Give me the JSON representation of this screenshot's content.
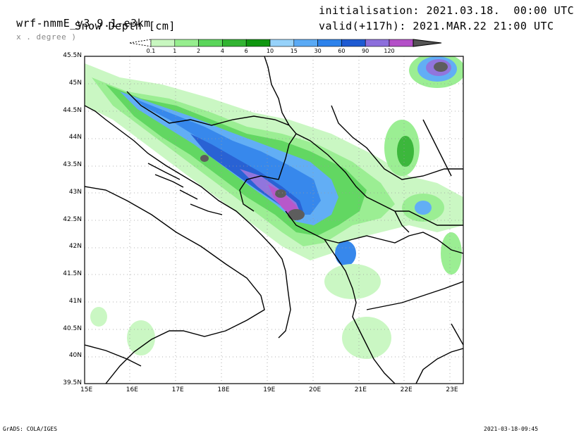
{
  "header": {
    "model": "wrf-nmmE_v3.9.1-e3km",
    "grid_note": "x . degree )",
    "variable": "Snow Depth [cm]",
    "init": "initialisation: 2021.03.18.  00:00 UTC",
    "valid": "valid(+117h): 2021.MAR.22 21:00 UTC"
  },
  "colorbar": {
    "labels": [
      "0.1",
      "1",
      "2",
      "4",
      "6",
      "10",
      "15",
      "30",
      "60",
      "90",
      "120"
    ],
    "colors": [
      "#c8f7c0",
      "#96ee8e",
      "#5ad55a",
      "#32b432",
      "#0f960f",
      "#96d2fa",
      "#5aaaf5",
      "#2d82eb",
      "#1e5ad2",
      "#8c6edc",
      "#b450c8"
    ],
    "extend_color": "#555555"
  },
  "axes": {
    "lat_labels": [
      "45.5N",
      "45N",
      "44.5N",
      "44N",
      "43.5N",
      "43N",
      "42.5N",
      "42N",
      "41.5N",
      "41N",
      "40.5N",
      "40N",
      "39.5N"
    ],
    "lon_labels": [
      "15E",
      "16E",
      "17E",
      "18E",
      "19E",
      "20E",
      "21E",
      "22E",
      "23E"
    ]
  },
  "footer": {
    "left": "GrADS: COLA/IGES",
    "right": "2021-03-18-09:45"
  }
}
